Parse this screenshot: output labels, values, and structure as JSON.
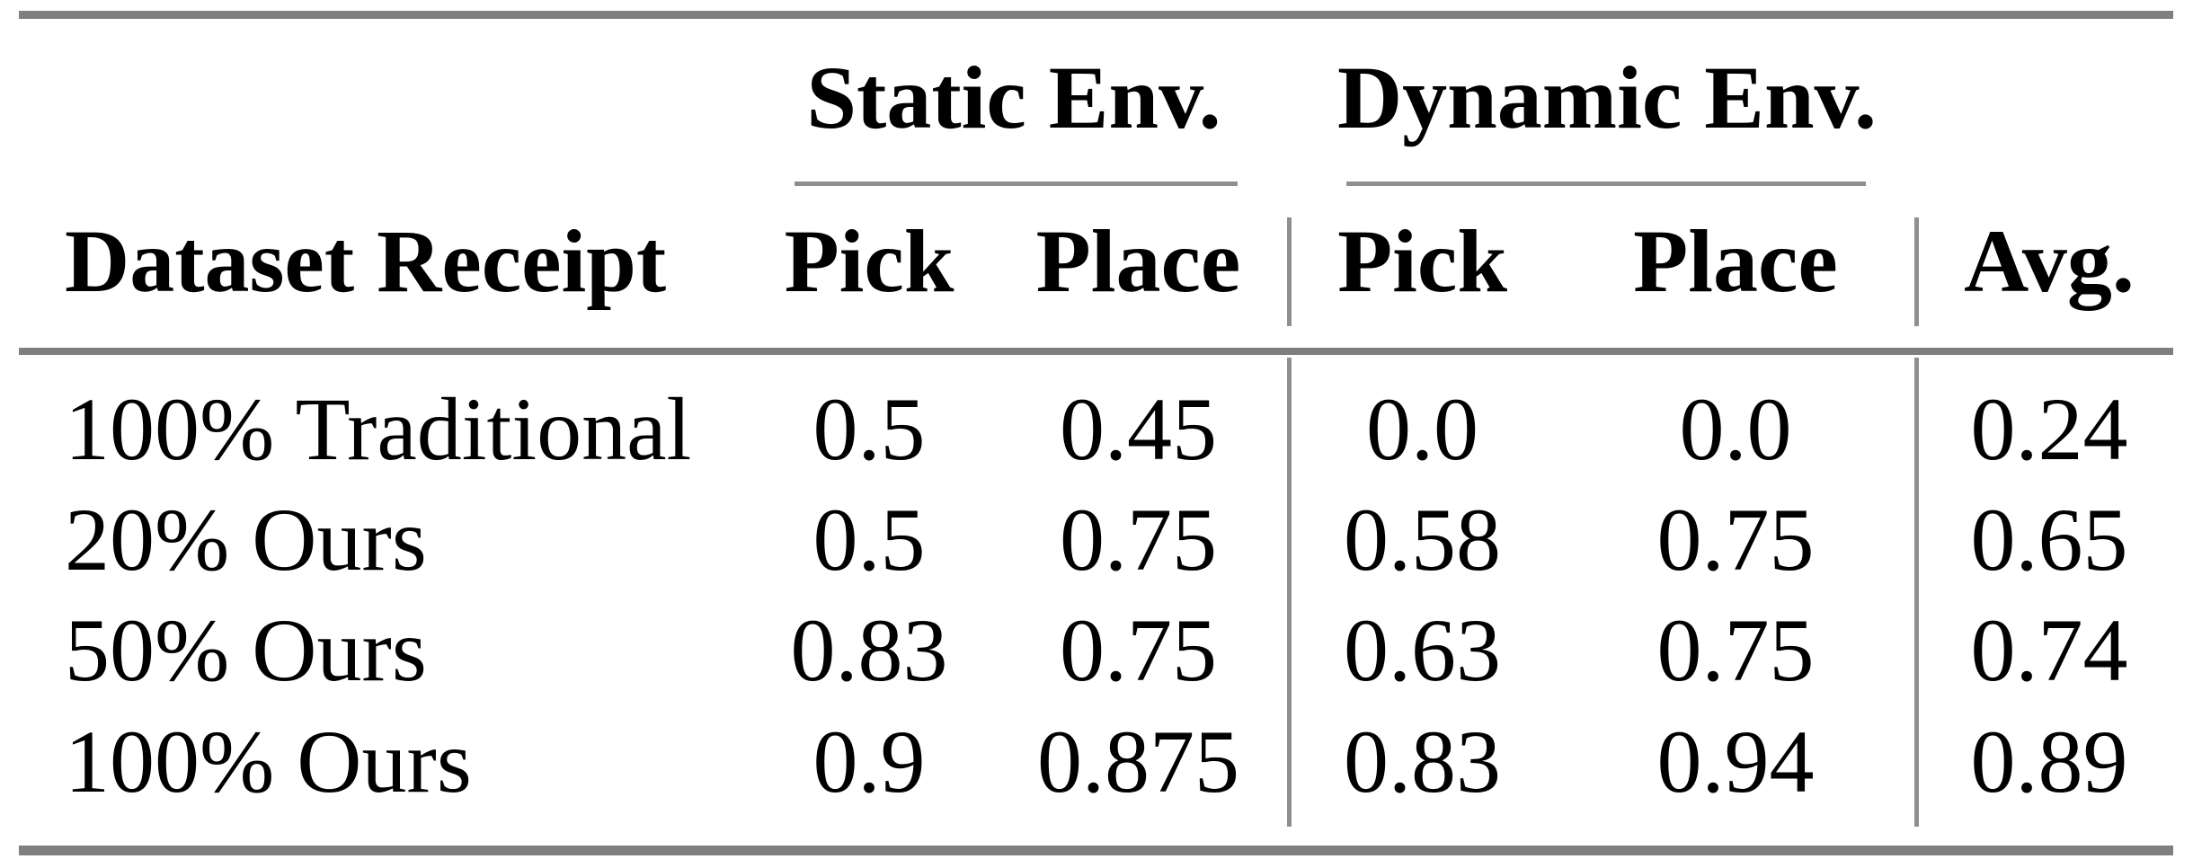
{
  "table": {
    "group_headers": {
      "static": "Static Env.",
      "dynamic": "Dynamic Env."
    },
    "column_headers": {
      "dataset": "Dataset Receipt",
      "static_pick": "Pick",
      "static_place": "Place",
      "dynamic_pick": "Pick",
      "dynamic_place": "Place",
      "avg": "Avg."
    },
    "rows": [
      {
        "dataset": "100% Traditional",
        "static_pick": "0.5",
        "static_place": "0.45",
        "dynamic_pick": "0.0",
        "dynamic_place": "0.0",
        "avg": "0.24"
      },
      {
        "dataset": "20% Ours",
        "static_pick": "0.5",
        "static_place": "0.75",
        "dynamic_pick": "0.58",
        "dynamic_place": "0.75",
        "avg": "0.65"
      },
      {
        "dataset": "50% Ours",
        "static_pick": "0.83",
        "static_place": "0.75",
        "dynamic_pick": "0.63",
        "dynamic_place": "0.75",
        "avg": "0.74"
      },
      {
        "dataset": "100% Ours",
        "static_pick": "0.9",
        "static_place": "0.875",
        "dynamic_pick": "0.83",
        "dynamic_place": "0.94",
        "avg": "0.89"
      }
    ],
    "colors": {
      "rule_gray": "#7f7f7f",
      "divider_gray": "#8f8f8f",
      "text": "#000000",
      "background": "#ffffff"
    }
  }
}
